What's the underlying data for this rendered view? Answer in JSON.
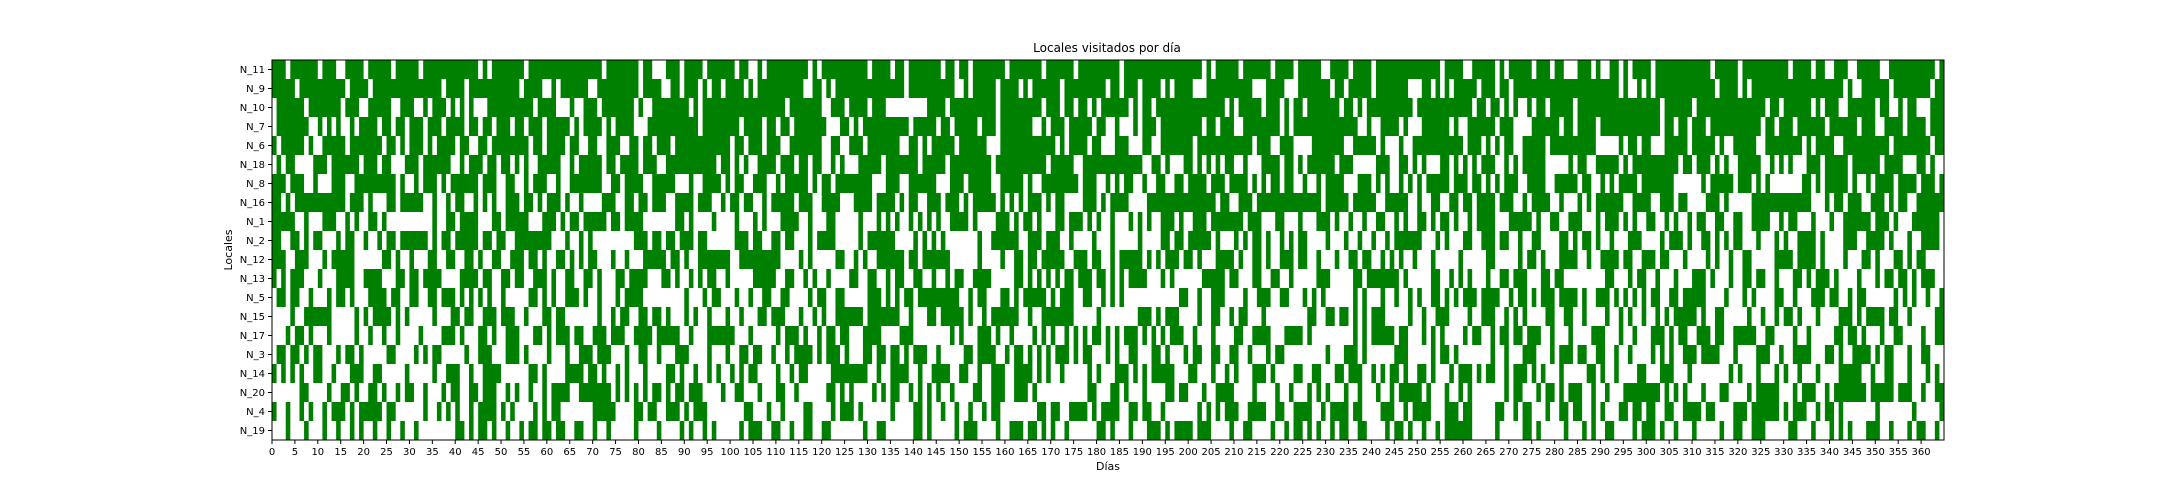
{
  "chart_data": {
    "type": "heatmap",
    "title": "Locales visitados por día",
    "xlabel": "Días",
    "ylabel": "Locales",
    "locales": [
      "N_11",
      "N_9",
      "N_10",
      "N_7",
      "N_6",
      "N_18",
      "N_8",
      "N_16",
      "N_1",
      "N_2",
      "N_12",
      "N_13",
      "N_5",
      "N_15",
      "N_17",
      "N_3",
      "N_14",
      "N_20",
      "N_4",
      "N_19"
    ],
    "xlim": [
      0,
      365
    ],
    "xticks": [
      0,
      5,
      10,
      15,
      20,
      25,
      30,
      35,
      40,
      45,
      50,
      55,
      60,
      65,
      70,
      75,
      80,
      85,
      90,
      95,
      100,
      105,
      110,
      115,
      120,
      125,
      130,
      135,
      140,
      145,
      150,
      155,
      160,
      165,
      170,
      175,
      180,
      185,
      190,
      195,
      200,
      205,
      210,
      215,
      220,
      225,
      230,
      235,
      240,
      245,
      250,
      255,
      260,
      265,
      270,
      275,
      280,
      285,
      290,
      295,
      300,
      305,
      310,
      315,
      320,
      325,
      330,
      335,
      340,
      345,
      350,
      355,
      360
    ],
    "visit_density": [
      0.8,
      0.78,
      0.74,
      0.73,
      0.71,
      0.69,
      0.67,
      0.64,
      0.5,
      0.49,
      0.47,
      0.46,
      0.45,
      0.44,
      0.43,
      0.42,
      0.42,
      0.41,
      0.4,
      0.39
    ],
    "fill_color": "#008000",
    "empty_color": "#ffffff",
    "grid": false,
    "legend": "none"
  }
}
